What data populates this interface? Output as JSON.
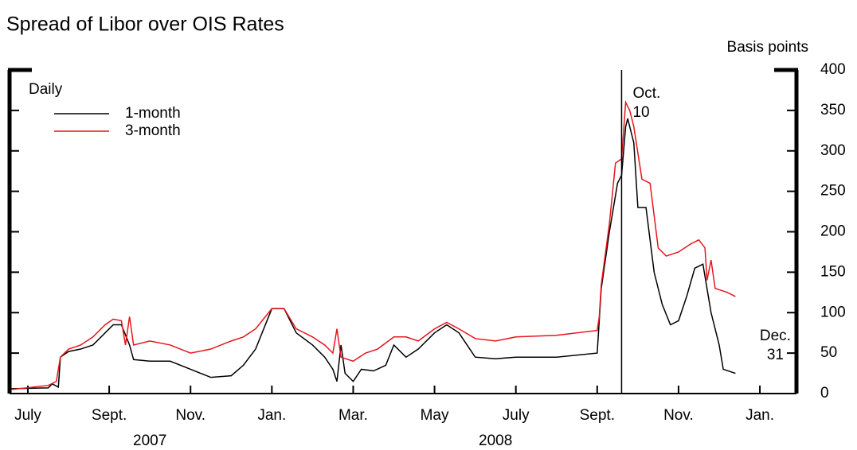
{
  "chart_data": {
    "type": "line",
    "title": "Spread of Libor over OIS Rates",
    "y_axis_label": "Basis points",
    "legend_title": "Daily",
    "xlim": [
      -0.45,
      18.9
    ],
    "xticks": [
      {
        "value": 0,
        "label": "July"
      },
      {
        "value": 2,
        "label": "Sept."
      },
      {
        "value": 4,
        "label": "Nov."
      },
      {
        "value": 6,
        "label": "Jan."
      },
      {
        "value": 8,
        "label": "Mar."
      },
      {
        "value": 10,
        "label": "May"
      },
      {
        "value": 12,
        "label": "July"
      },
      {
        "value": 14,
        "label": "Sept."
      },
      {
        "value": 16,
        "label": "Nov."
      },
      {
        "value": 18,
        "label": "Jan."
      }
    ],
    "years": [
      {
        "value": 3,
        "label": "2007"
      },
      {
        "value": 11.5,
        "label": "2008"
      }
    ],
    "ylim": [
      0,
      400
    ],
    "yticks": [
      0,
      50,
      100,
      150,
      200,
      250,
      300,
      350,
      400
    ],
    "series": [
      {
        "name": "1-month",
        "color": "#000000",
        "x": [
          -0.4,
          0.5,
          0.6,
          0.75,
          0.8,
          1.0,
          1.3,
          1.6,
          1.9,
          2.1,
          2.3,
          2.5,
          2.6,
          3,
          3.5,
          4,
          4.5,
          5,
          5.3,
          5.6,
          6,
          6.3,
          6.6,
          7,
          7.3,
          7.5,
          7.6,
          7.7,
          7.8,
          8,
          8.2,
          8.5,
          8.8,
          9,
          9.3,
          9.6,
          10,
          10.3,
          10.6,
          11,
          11.5,
          12,
          13,
          14,
          14.1,
          14.3,
          14.5,
          14.6,
          14.7,
          14.75,
          14.9,
          15.0,
          15.2,
          15.4,
          15.6,
          15.8,
          16.0,
          16.2,
          16.4,
          16.6,
          16.8,
          17.0,
          17.1,
          17.4
        ],
        "values": [
          6,
          7,
          12,
          8,
          45,
          52,
          55,
          60,
          75,
          85,
          85,
          60,
          42,
          40,
          40,
          30,
          20,
          22,
          35,
          55,
          105,
          105,
          75,
          60,
          45,
          30,
          15,
          60,
          25,
          15,
          30,
          28,
          35,
          60,
          45,
          55,
          75,
          85,
          75,
          45,
          43,
          45,
          45,
          50,
          130,
          200,
          260,
          270,
          330,
          340,
          310,
          230,
          230,
          150,
          110,
          85,
          90,
          120,
          155,
          160,
          100,
          60,
          30,
          25
        ]
      },
      {
        "name": "3-month",
        "color": "#e8141c",
        "x": [
          -0.4,
          0.5,
          0.7,
          0.8,
          1.0,
          1.3,
          1.6,
          1.9,
          2.1,
          2.3,
          2.4,
          2.5,
          2.6,
          3,
          3.5,
          4,
          4.5,
          5,
          5.3,
          5.6,
          6,
          6.3,
          6.6,
          7,
          7.3,
          7.5,
          7.6,
          7.7,
          8,
          8.3,
          8.6,
          9,
          9.3,
          9.6,
          10,
          10.3,
          10.6,
          11,
          11.5,
          12,
          13,
          14,
          14.05,
          14.1,
          14.3,
          14.45,
          14.6,
          14.7,
          14.8,
          14.9,
          15.1,
          15.3,
          15.5,
          15.7,
          16,
          16.3,
          16.5,
          16.65,
          16.7,
          16.8,
          16.9,
          17.2,
          17.4
        ],
        "values": [
          5,
          10,
          15,
          45,
          55,
          60,
          70,
          85,
          92,
          90,
          60,
          95,
          60,
          65,
          60,
          50,
          55,
          65,
          70,
          80,
          105,
          105,
          80,
          70,
          60,
          50,
          80,
          45,
          40,
          50,
          55,
          70,
          70,
          65,
          80,
          88,
          80,
          68,
          65,
          70,
          72,
          78,
          95,
          135,
          210,
          285,
          290,
          360,
          350,
          330,
          265,
          260,
          180,
          170,
          175,
          185,
          190,
          180,
          140,
          165,
          130,
          125,
          120
        ]
      }
    ],
    "annotations": [
      {
        "lines": [
          "Oct.",
          "10"
        ],
        "x": 14.6,
        "vline": true
      },
      {
        "lines": [
          "Dec.",
          "31"
        ],
        "x": 17.4
      }
    ]
  }
}
